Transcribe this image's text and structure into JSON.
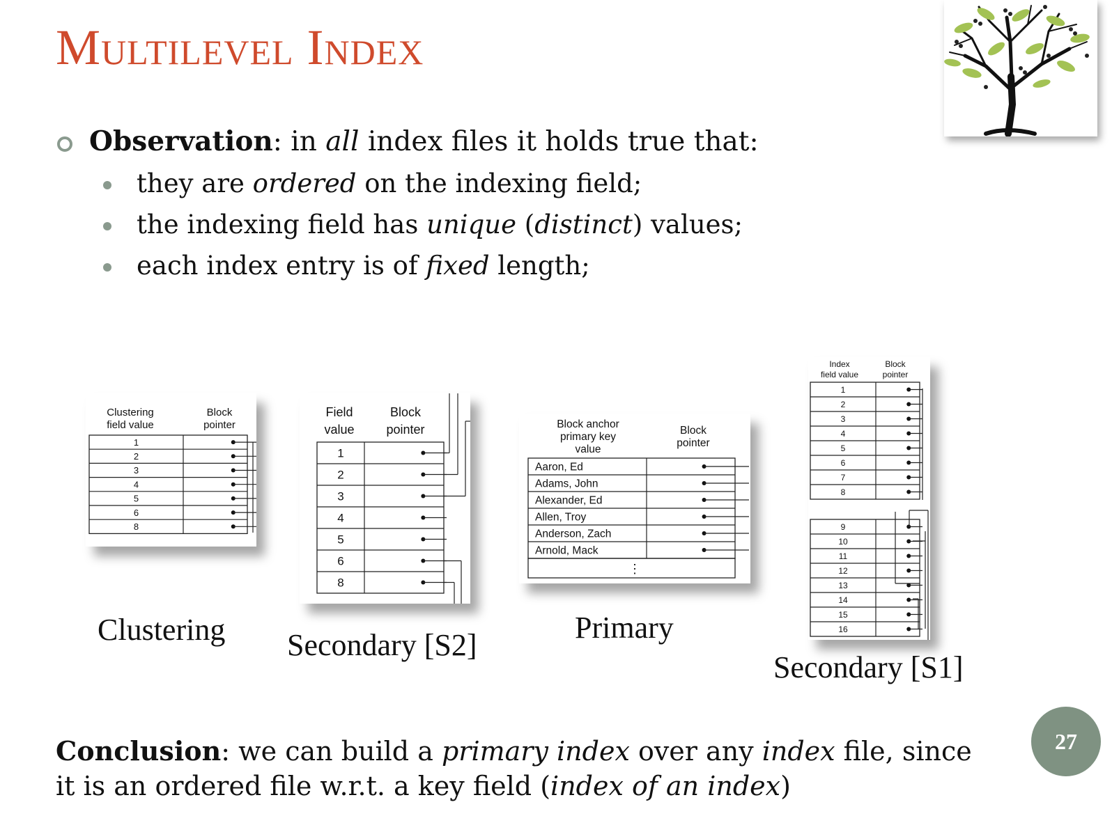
{
  "title": "Multilevel Index",
  "observation": {
    "lead": "Observation",
    "rest_a": ": in ",
    "rest_em": "all",
    "rest_b": " index files it holds true that:"
  },
  "bullets": [
    {
      "a": "they are ",
      "em": "ordered",
      "b": " on the indexing field;"
    },
    {
      "a": "the indexing field has ",
      "em": "unique",
      "b": " (",
      "em2": "distinct",
      "c": ") values;"
    },
    {
      "a": "each index entry is of ",
      "em": "fixed",
      "b": " length;"
    }
  ],
  "diagrams": {
    "clustering": {
      "caption": "Clustering",
      "col1": [
        "Clustering",
        "field value"
      ],
      "col2": [
        "Block",
        "pointer"
      ],
      "values": [
        "1",
        "2",
        "3",
        "4",
        "5",
        "6",
        "8"
      ]
    },
    "secondary_s2": {
      "caption": "Secondary [S2]",
      "col1": [
        "Field",
        "value"
      ],
      "col2": [
        "Block",
        "pointer"
      ],
      "values": [
        "1",
        "2",
        "3",
        "4",
        "5",
        "6",
        "8"
      ]
    },
    "primary": {
      "caption": "Primary",
      "col1": [
        "Block anchor",
        "primary key",
        "value"
      ],
      "col2": [
        "Block",
        "pointer"
      ],
      "values": [
        "Aaron, Ed",
        "Adams, John",
        "Alexander, Ed",
        "Allen, Troy",
        "Anderson, Zach",
        "Arnold, Mack"
      ],
      "ellipsis": "⋮"
    },
    "secondary_s1": {
      "caption": "Secondary [S1]",
      "col1": [
        "Index",
        "field value"
      ],
      "col2": [
        "Block",
        "pointer"
      ],
      "values_top": [
        "1",
        "2",
        "3",
        "4",
        "5",
        "6",
        "7",
        "8"
      ],
      "values_bottom": [
        "9",
        "10",
        "11",
        "12",
        "13",
        "14",
        "15",
        "16"
      ]
    }
  },
  "conclusion": {
    "lead": "Conclusion",
    "a": ": we can build a ",
    "em1": "primary index",
    "b": " over any ",
    "em2": "index",
    "c": " file, since it is an ordered file w.r.t. a key field (",
    "em3": "index of an index",
    "d": ")"
  },
  "page_number": "27",
  "colors": {
    "title": "#cf4a2c",
    "accent": "#8a9a8e",
    "page_badge": "#7f9282"
  }
}
